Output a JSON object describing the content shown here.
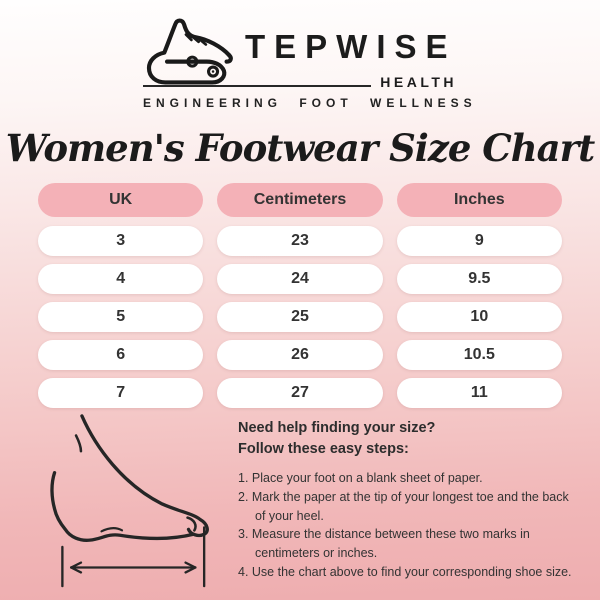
{
  "logo": {
    "brand": "TEPWISE",
    "sub": "HEALTH",
    "tagline": "ENGINEERING FOOT WELLNESS",
    "icon": "sneaker-logo-icon"
  },
  "title": "Women's Footwear Size Chart",
  "table": {
    "columns": [
      "UK",
      "Centimeters",
      "Inches"
    ],
    "rows": [
      {
        "uk": "3",
        "cm": "23",
        "inches": "9"
      },
      {
        "uk": "4",
        "cm": "24",
        "inches": "9.5"
      },
      {
        "uk": "5",
        "cm": "25",
        "inches": "10"
      },
      {
        "uk": "6",
        "cm": "26",
        "inches": "10.5"
      },
      {
        "uk": "7",
        "cm": "27",
        "inches": "11"
      }
    ]
  },
  "help": {
    "heading1": "Need help finding your size?",
    "heading2": "Follow these easy steps:",
    "steps": [
      "1. Place your foot on a blank sheet of paper.",
      "2. Mark the paper at the tip of your longest toe and the back of your heel.",
      "3. Measure the distance between these two marks in centimeters or inches.",
      "4. Use the chart above to find your corresponding shoe size."
    ],
    "illustration": "foot-measurement-diagram"
  },
  "colors": {
    "bg_top": "#fffefe",
    "bg_bottom": "#eeadaf",
    "header_pill": "#f4b1b7",
    "row_pill": "#ffffff",
    "text_dark": "#2e2e2e",
    "line_art": "#1c1c1c"
  }
}
